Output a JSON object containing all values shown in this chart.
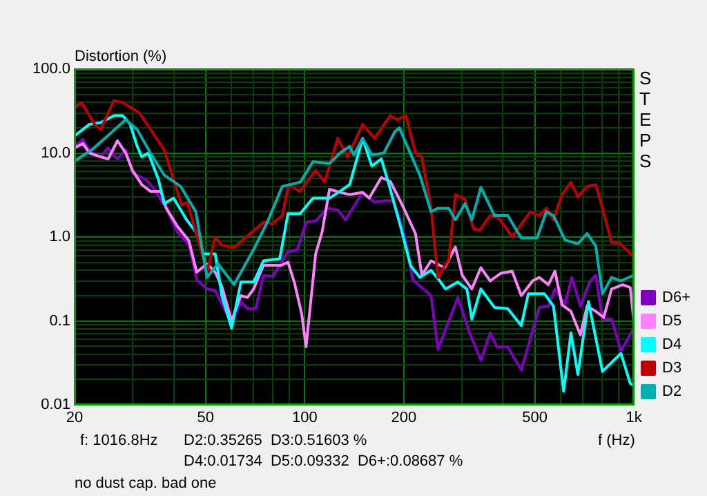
{
  "chart_data": {
    "type": "line",
    "title": "Distortion (%)",
    "xlabel": "f (Hz)",
    "log": "xy",
    "xlim": [
      20,
      1000
    ],
    "ylim": [
      0.01,
      100
    ],
    "xticks": [
      20,
      {
        "value": 30,
        "label": null
      },
      {
        "value": 40,
        "label": null
      },
      50,
      {
        "value": 60,
        "label": null
      },
      {
        "value": 70,
        "label": null
      },
      {
        "value": 80,
        "label": null
      },
      {
        "value": 90,
        "label": null
      },
      100,
      200,
      {
        "value": 300,
        "label": null
      },
      {
        "value": 400,
        "label": null
      },
      500,
      {
        "value": 600,
        "label": null
      },
      {
        "value": 700,
        "label": null
      },
      {
        "value": 800,
        "label": null
      },
      {
        "value": 900,
        "label": null
      },
      {
        "value": 1000,
        "label": "1k"
      }
    ],
    "yticks": [
      {
        "value": 0.01,
        "label": "0.01"
      },
      {
        "value": 0.02,
        "label": null
      },
      {
        "value": 0.03,
        "label": null
      },
      {
        "value": 0.04,
        "label": null
      },
      {
        "value": 0.05,
        "label": null
      },
      {
        "value": 0.06,
        "label": null
      },
      {
        "value": 0.07,
        "label": null
      },
      {
        "value": 0.08,
        "label": null
      },
      {
        "value": 0.09,
        "label": null
      },
      {
        "value": 0.1,
        "label": "0.1"
      },
      {
        "value": 0.2,
        "label": null
      },
      {
        "value": 0.3,
        "label": null
      },
      {
        "value": 0.4,
        "label": null
      },
      {
        "value": 0.5,
        "label": null
      },
      {
        "value": 0.6,
        "label": null
      },
      {
        "value": 0.7,
        "label": null
      },
      {
        "value": 0.8,
        "label": null
      },
      {
        "value": 0.9,
        "label": null
      },
      {
        "value": 1,
        "label": "1.0"
      },
      {
        "value": 2,
        "label": null
      },
      {
        "value": 3,
        "label": null
      },
      {
        "value": 4,
        "label": null
      },
      {
        "value": 5,
        "label": null
      },
      {
        "value": 6,
        "label": null
      },
      {
        "value": 7,
        "label": null
      },
      {
        "value": 8,
        "label": null
      },
      {
        "value": 9,
        "label": null
      },
      {
        "value": 10,
        "label": "10.0"
      },
      {
        "value": 20,
        "label": null
      },
      {
        "value": 30,
        "label": null
      },
      {
        "value": 40,
        "label": null
      },
      {
        "value": 50,
        "label": null
      },
      {
        "value": 60,
        "label": null
      },
      {
        "value": 70,
        "label": null
      },
      {
        "value": 80,
        "label": null
      },
      {
        "value": 90,
        "label": null
      },
      {
        "value": 100,
        "label": "100.0"
      }
    ],
    "grid": true,
    "legend": "right",
    "marker": "none",
    "series": [
      {
        "name": "D2",
        "color": "#00b0b0",
        "x": [
          20,
          22.6,
          25.2,
          28.6,
          31,
          34,
          37.4,
          42,
          46.7,
          50.5,
          54.5,
          61,
          70,
          77,
          85.5,
          97,
          106,
          119,
          128,
          137,
          141,
          150,
          160,
          174,
          188,
          194,
          206,
          224,
          242,
          254,
          274,
          287,
          307,
          322,
          343,
          377,
          414,
          455,
          508,
          542,
          570,
          618,
          676,
          721,
          766,
          803,
          856,
          914,
          1000
        ],
        "values": [
          8,
          11,
          16,
          25,
          19,
          10,
          5.5,
          4,
          2,
          0.33,
          0.48,
          0.27,
          0.71,
          1.5,
          4,
          4.5,
          7.9,
          7.5,
          10,
          12,
          9.5,
          15,
          9.5,
          10,
          18,
          20,
          11.5,
          5.4,
          2,
          2.2,
          2.2,
          1.6,
          2.5,
          1.6,
          3.9,
          1.8,
          1.8,
          0.97,
          0.97,
          2,
          1.8,
          0.92,
          0.83,
          1.1,
          0.78,
          0.21,
          0.33,
          0.3,
          0.35
        ]
      },
      {
        "name": "D3",
        "color": "#c00000",
        "x": [
          20,
          21,
          23,
          24,
          26.3,
          28,
          31.5,
          37.4,
          42.3,
          44,
          49.6,
          50.5,
          53.5,
          56,
          61,
          75,
          80,
          85.5,
          89.3,
          96.6,
          108,
          115,
          126,
          135,
          150,
          163,
          182,
          191,
          203,
          217,
          227,
          242,
          254,
          274,
          287,
          307,
          326,
          340,
          366,
          388,
          427,
          485,
          516,
          542,
          570,
          605,
          644,
          676,
          721,
          766,
          803,
          856,
          905,
          1000
        ],
        "values": [
          35,
          40,
          22,
          19,
          42,
          40,
          30,
          11,
          2.4,
          2.6,
          0.5,
          0.38,
          1,
          0.8,
          0.75,
          1.5,
          1.45,
          1.8,
          4.2,
          3.5,
          6.2,
          4.5,
          15,
          9,
          22,
          15,
          28,
          25,
          28,
          10,
          9,
          2.2,
          0.33,
          0.55,
          3.2,
          2.8,
          1.25,
          1.2,
          1.8,
          1.7,
          1,
          2,
          1.8,
          2.2,
          1.6,
          3.2,
          4.5,
          3,
          4,
          4.2,
          2.2,
          0.86,
          0.85,
          0.58
        ]
      },
      {
        "name": "D4",
        "color": "#00ffff",
        "x": [
          20,
          22.2,
          24,
          26.4,
          28,
          29.5,
          31,
          32,
          33.5,
          36,
          37.4,
          40,
          43.8,
          46.7,
          49,
          53.5,
          56,
          60,
          64,
          70,
          75,
          84,
          89,
          97,
          106,
          119,
          128,
          137,
          150,
          160,
          171,
          182,
          197,
          210,
          224,
          242,
          254,
          268,
          292,
          311,
          322,
          343,
          377,
          414,
          455,
          478,
          535,
          570,
          612,
          644,
          676,
          728,
          803,
          914,
          975,
          1000
        ],
        "values": [
          16,
          22,
          23,
          28,
          28,
          22,
          12,
          9,
          10,
          4.8,
          2.5,
          2.9,
          1.6,
          1.15,
          0.63,
          0.63,
          0.2,
          0.082,
          0.29,
          0.29,
          0.52,
          0.55,
          1.9,
          1.9,
          2.9,
          2.9,
          3.5,
          4.2,
          15,
          7,
          8.5,
          3.7,
          1.2,
          0.45,
          0.33,
          0.4,
          0.32,
          0.24,
          0.29,
          0.24,
          0.105,
          0.24,
          0.145,
          0.14,
          0.088,
          0.21,
          0.21,
          0.15,
          0.0145,
          0.072,
          0.023,
          0.17,
          0.025,
          0.041,
          0.018,
          0.017
        ]
      },
      {
        "name": "D5",
        "color": "#ff80ff",
        "x": [
          20,
          21.2,
          22.2,
          24,
          25.3,
          27,
          28.6,
          30,
          32,
          34,
          36.6,
          38,
          41,
          44.5,
          47,
          50.5,
          53.5,
          56,
          60,
          64,
          67,
          70,
          75,
          85,
          89,
          93,
          98,
          101,
          108,
          113,
          119,
          128,
          137,
          150,
          157,
          171,
          182,
          197,
          217,
          227,
          242,
          266,
          287,
          301,
          322,
          343,
          366,
          395,
          427,
          455,
          493,
          516,
          550,
          576,
          605,
          644,
          688,
          721,
          766,
          810,
          856,
          925,
          975,
          1000
        ],
        "values": [
          11.5,
          13,
          10,
          9,
          8.5,
          14,
          10,
          6.2,
          4.2,
          3.5,
          3.5,
          2.2,
          1.35,
          0.9,
          0.38,
          0.48,
          0.38,
          0.26,
          0.1,
          0.2,
          0.19,
          0.24,
          0.46,
          0.46,
          0.5,
          0.29,
          0.12,
          0.049,
          0.63,
          1.15,
          3.7,
          3.4,
          3.2,
          3.4,
          2.9,
          5.1,
          4.6,
          2.5,
          1.1,
          0.35,
          0.52,
          0.43,
          0.76,
          0.35,
          0.24,
          0.43,
          0.3,
          0.37,
          0.39,
          0.2,
          0.3,
          0.33,
          0.27,
          0.39,
          0.155,
          0.13,
          0.068,
          0.15,
          0.13,
          0.11,
          0.24,
          0.27,
          0.25,
          0.1
        ]
      },
      {
        "name": "D6+",
        "color": "#8000c0",
        "x": [
          20,
          21.2,
          22.2,
          24,
          25.2,
          27,
          28.6,
          30,
          33,
          35,
          38,
          41,
          44.5,
          47,
          50.5,
          53.5,
          60,
          64,
          67,
          71,
          75,
          80,
          84,
          89,
          95,
          101,
          108,
          117,
          126,
          133,
          150,
          163,
          174,
          185,
          194,
          203,
          213,
          242,
          254,
          292,
          317,
          343,
          366,
          384,
          414,
          455,
          516,
          550,
          576,
          618,
          648,
          688,
          734,
          766,
          803,
          856,
          914,
          1000
        ],
        "values": [
          12,
          14.5,
          10.5,
          9,
          11.5,
          8.5,
          11,
          5.8,
          4.8,
          3.7,
          2.2,
          1.15,
          0.8,
          0.31,
          0.24,
          0.23,
          0.093,
          0.17,
          0.14,
          0.14,
          0.35,
          0.34,
          0.46,
          0.67,
          0.7,
          1.5,
          1.55,
          2.2,
          2.1,
          1.6,
          3.4,
          2.6,
          2.7,
          2.7,
          1.7,
          0.9,
          0.31,
          0.2,
          0.046,
          0.19,
          0.072,
          0.034,
          0.072,
          0.049,
          0.049,
          0.026,
          0.145,
          0.15,
          0.24,
          0.16,
          0.33,
          0.15,
          0.29,
          0.35,
          0.105,
          0.105,
          0.044,
          0.082
        ]
      }
    ],
    "annotations": [
      "STEPS",
      "f: 1016.8Hz",
      "D2:0.35265  D3:0.51603 %",
      "D4:0.01734  D5:0.09332  D6+:0.08687 %",
      "no dust cap. bad one"
    ]
  }
}
